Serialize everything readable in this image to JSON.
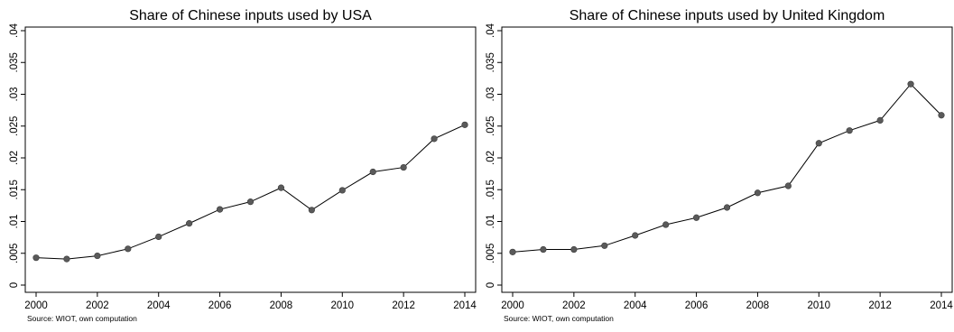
{
  "chart_data": [
    {
      "type": "line",
      "title": "Share of Chinese inputs used by USA",
      "source": "Source: WIOT, own computation",
      "x": [
        2000,
        2001,
        2002,
        2003,
        2004,
        2005,
        2006,
        2007,
        2008,
        2009,
        2010,
        2011,
        2012,
        2013,
        2014
      ],
      "series": [
        {
          "values": [
            0.0043,
            0.0041,
            0.0046,
            0.0057,
            0.0076,
            0.0097,
            0.0119,
            0.0131,
            0.0153,
            0.0118,
            0.0149,
            0.0178,
            0.0185,
            0.023,
            0.0252
          ]
        }
      ],
      "xticks": [
        "2000",
        "2002",
        "2004",
        "2006",
        "2008",
        "2010",
        "2012",
        "2014"
      ],
      "yticks": [
        "0",
        ".005",
        ".01",
        ".015",
        ".02",
        ".025",
        ".03",
        ".035",
        ".04"
      ],
      "xlim": [
        2000,
        2014
      ],
      "ylim": [
        0,
        0.04
      ],
      "grid": false,
      "colors": {
        "line": "#000000",
        "marker": "#5a5a5a"
      }
    },
    {
      "type": "line",
      "title": "Share of Chinese inputs used by United Kingdom",
      "source": "Source: WIOT, own computation",
      "x": [
        2000,
        2001,
        2002,
        2003,
        2004,
        2005,
        2006,
        2007,
        2008,
        2009,
        2010,
        2011,
        2012,
        2013,
        2014
      ],
      "series": [
        {
          "values": [
            0.0052,
            0.0056,
            0.0056,
            0.0062,
            0.0078,
            0.0095,
            0.0106,
            0.0122,
            0.0145,
            0.0156,
            0.0223,
            0.0243,
            0.0259,
            0.0316,
            0.0267
          ]
        }
      ],
      "xticks": [
        "2000",
        "2002",
        "2004",
        "2006",
        "2008",
        "2010",
        "2012",
        "2014"
      ],
      "yticks": [
        "0",
        ".005",
        ".01",
        ".015",
        ".02",
        ".025",
        ".03",
        ".035",
        ".04"
      ],
      "xlim": [
        2000,
        2014
      ],
      "ylim": [
        0,
        0.04
      ],
      "grid": false,
      "colors": {
        "line": "#000000",
        "marker": "#5a5a5a"
      }
    }
  ]
}
